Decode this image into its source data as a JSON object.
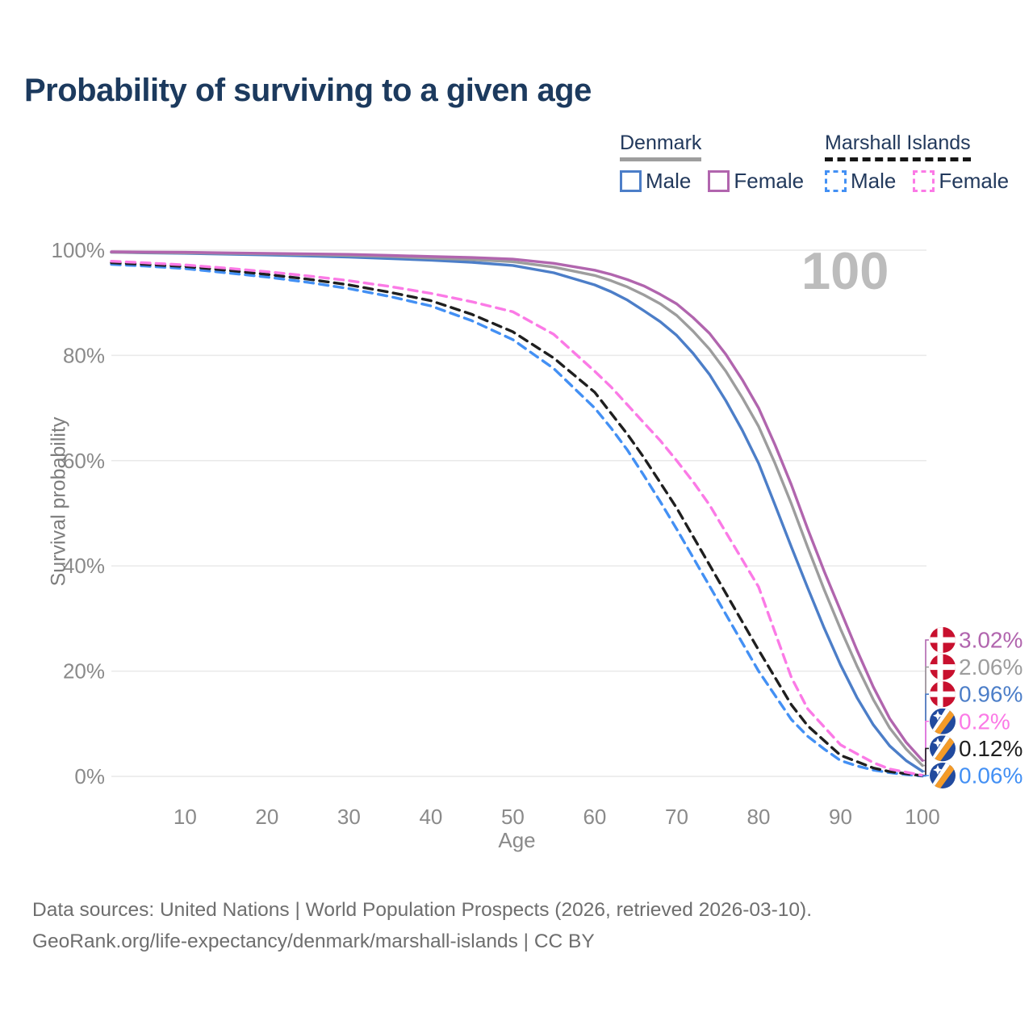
{
  "header": {
    "title": "Probability of surviving to a given age"
  },
  "legend": {
    "groups": [
      {
        "label": "Denmark",
        "line_style": "solid",
        "underline_color": "#9e9e9e",
        "items": [
          {
            "label": "Male",
            "color": "#4c7ec8"
          },
          {
            "label": "Female",
            "color": "#b165ae"
          }
        ]
      },
      {
        "label": "Marshall Islands",
        "line_style": "dashed",
        "underline_color": "#161616",
        "items": [
          {
            "label": "Male",
            "color": "#4390f4"
          },
          {
            "label": "Female",
            "color": "#fb7ae6"
          }
        ]
      }
    ]
  },
  "chart_data": {
    "type": "line",
    "title": "Probability of surviving to a given age",
    "xlabel": "Age",
    "ylabel": "Survival probability",
    "xlim": [
      1,
      100
    ],
    "ylim": [
      0,
      100
    ],
    "grid": "horizontal",
    "legend_position": "top-right",
    "watermark_age_label": "100",
    "x_ticks": [
      10,
      20,
      30,
      40,
      50,
      60,
      70,
      80,
      90,
      100
    ],
    "y_ticks": [
      0,
      20,
      40,
      60,
      80,
      100
    ],
    "y_tick_suffix": "%",
    "x": [
      1,
      5,
      10,
      15,
      20,
      25,
      30,
      35,
      40,
      45,
      50,
      55,
      60,
      62,
      64,
      66,
      68,
      70,
      72,
      74,
      76,
      78,
      80,
      82,
      84,
      86,
      88,
      90,
      92,
      94,
      96,
      98,
      100
    ],
    "series": [
      {
        "name": "Denmark Female",
        "country": "Denmark",
        "sex": "Female",
        "line": "solid",
        "color": "#b165ae",
        "flag": "dk",
        "end_label": "3.02%",
        "values": [
          99.7,
          99.65,
          99.6,
          99.5,
          99.4,
          99.3,
          99.2,
          99.0,
          98.8,
          98.6,
          98.3,
          97.5,
          96.2,
          95.4,
          94.4,
          93.2,
          91.6,
          89.8,
          87.2,
          84.2,
          80.2,
          75.4,
          70.0,
          63.0,
          55.4,
          47.0,
          39.0,
          31.5,
          24.0,
          17.0,
          11.0,
          6.5,
          3.02
        ]
      },
      {
        "name": "Denmark Both sexes",
        "country": "Denmark",
        "sex": "Both",
        "line": "solid",
        "color": "#9d9d9d",
        "flag": "dk",
        "end_label": "2.06%",
        "values": [
          99.6,
          99.55,
          99.5,
          99.4,
          99.3,
          99.15,
          99.0,
          98.8,
          98.5,
          98.2,
          97.8,
          96.8,
          95.2,
          94.2,
          93.0,
          91.5,
          89.8,
          87.6,
          84.6,
          81.2,
          77.0,
          72.0,
          66.5,
          59.5,
          51.8,
          43.5,
          35.5,
          28.0,
          21.0,
          14.6,
          9.2,
          5.2,
          2.06
        ]
      },
      {
        "name": "Denmark Male",
        "country": "Denmark",
        "sex": "Male",
        "line": "solid",
        "color": "#4c7ec8",
        "flag": "dk",
        "end_label": "0.96%",
        "values": [
          99.6,
          99.5,
          99.4,
          99.25,
          99.1,
          98.9,
          98.7,
          98.4,
          98.1,
          97.7,
          97.1,
          95.7,
          93.4,
          92.1,
          90.5,
          88.5,
          86.4,
          83.8,
          80.4,
          76.4,
          71.4,
          65.8,
          59.5,
          51.6,
          43.6,
          35.8,
          28.2,
          21.2,
          15.0,
          9.8,
          5.8,
          3.0,
          0.96
        ]
      },
      {
        "name": "Marshall Islands Female",
        "country": "Marshall Islands",
        "sex": "Female",
        "line": "dashed",
        "color": "#fb7ae6",
        "flag": "mh",
        "end_label": "0.2%",
        "values": [
          97.9,
          97.6,
          97.2,
          96.6,
          95.9,
          95.1,
          94.2,
          93.1,
          91.8,
          90.2,
          88.3,
          84.0,
          77.0,
          74.0,
          70.6,
          67.2,
          63.8,
          60.0,
          56.0,
          51.6,
          46.4,
          41.2,
          36.0,
          27.4,
          18.8,
          12.8,
          9.4,
          6.0,
          4.3,
          2.6,
          1.4,
          0.8,
          0.2
        ]
      },
      {
        "name": "Marshall Islands Both sexes",
        "country": "Marshall Islands",
        "sex": "Both",
        "line": "dashed",
        "color": "#1f1f1f",
        "flag": "mh",
        "end_label": "0.12%",
        "values": [
          97.6,
          97.3,
          96.9,
          96.2,
          95.4,
          94.5,
          93.4,
          92.0,
          90.4,
          87.8,
          84.5,
          79.5,
          73.0,
          69.0,
          65.0,
          60.6,
          55.8,
          51.0,
          45.6,
          40.2,
          34.8,
          29.4,
          24.0,
          18.8,
          13.6,
          9.6,
          6.8,
          4.0,
          2.8,
          1.6,
          0.9,
          0.5,
          0.12
        ]
      },
      {
        "name": "Marshall Islands Male",
        "country": "Marshall Islands",
        "sex": "Male",
        "line": "dashed",
        "color": "#4390f4",
        "flag": "mh",
        "end_label": "0.06%",
        "values": [
          97.3,
          97.0,
          96.5,
          95.7,
          94.9,
          93.9,
          92.7,
          91.2,
          89.4,
          86.6,
          83.0,
          77.5,
          70.0,
          66.2,
          62.0,
          57.2,
          52.2,
          47.0,
          41.6,
          36.2,
          30.8,
          25.4,
          20.0,
          15.4,
          10.8,
          7.6,
          5.2,
          3.0,
          2.0,
          1.2,
          0.7,
          0.35,
          0.06
        ]
      }
    ],
    "flag_colors": {
      "dk": {
        "field": "#c8102e",
        "cross": "#ffffff"
      },
      "mh": {
        "field": "#214a9e",
        "band_upper": "#ffffff",
        "band_lower": "#f49b28",
        "star": "#ffffff"
      }
    }
  },
  "footer": {
    "line1": "Data sources: United Nations | World Population Prospects (2026, retrieved 2026-03-10).",
    "line2": "GeoRank.org/life-expectancy/denmark/marshall-islands | CC BY"
  }
}
